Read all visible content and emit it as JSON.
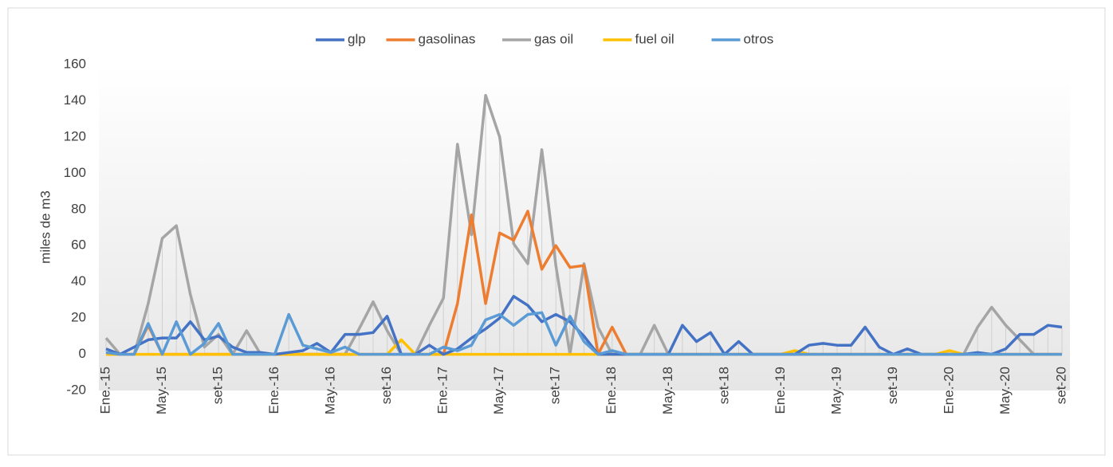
{
  "chart_data": {
    "type": "line",
    "y_label": "miles de m3",
    "categories": [
      "Ene.-15",
      null,
      null,
      null,
      "May.-15",
      null,
      null,
      null,
      "set-15",
      null,
      null,
      null,
      "Ene.-16",
      null,
      null,
      null,
      "May.-16",
      null,
      null,
      null,
      "set-16",
      null,
      null,
      null,
      "Ene.-17",
      null,
      null,
      null,
      "May.-17",
      null,
      null,
      null,
      "set-17",
      null,
      null,
      null,
      "Ene.-18",
      null,
      null,
      null,
      "May.-18",
      null,
      null,
      null,
      "set-18",
      null,
      null,
      null,
      "Ene.-19",
      null,
      null,
      null,
      "May.-19",
      null,
      null,
      null,
      "set-19",
      null,
      null,
      null,
      "Ene.-20",
      null,
      null,
      null,
      "May.-20",
      null,
      null,
      null,
      "set-20"
    ],
    "series": [
      {
        "name": "glp",
        "color": "#4472c4",
        "values": [
          3,
          0,
          4,
          8,
          9,
          9,
          18,
          8,
          10,
          4,
          1,
          1,
          0,
          1,
          2,
          6,
          1,
          11,
          11,
          12,
          21,
          0,
          0,
          5,
          0,
          3,
          9,
          14,
          20,
          32,
          27,
          18,
          22,
          18,
          10,
          0,
          0,
          0,
          0,
          0,
          0,
          16,
          7,
          12,
          0,
          7,
          0,
          0,
          0,
          0,
          5,
          6,
          5,
          5,
          15,
          4,
          0,
          3,
          0,
          0,
          0,
          0,
          1,
          0,
          3,
          11,
          11,
          16,
          15
        ]
      },
      {
        "name": "gasolinas",
        "color": "#ed7d31",
        "values": [
          0,
          0,
          0,
          16,
          0,
          0,
          0,
          0,
          0,
          0,
          0,
          0,
          0,
          0,
          0,
          0,
          0,
          0,
          0,
          0,
          0,
          0,
          0,
          0,
          0,
          28,
          77,
          28,
          67,
          63,
          79,
          47,
          60,
          48,
          49,
          0,
          15,
          0,
          0,
          0,
          0,
          0,
          0,
          0,
          0,
          0,
          0,
          0,
          0,
          0,
          0,
          0,
          0,
          0,
          0,
          0,
          0,
          0,
          0,
          0,
          0,
          0,
          0,
          0,
          0,
          0,
          0,
          0,
          0
        ]
      },
      {
        "name": "gas oil",
        "color": "#a5a5a5",
        "values": [
          9,
          0,
          0,
          28,
          64,
          71,
          33,
          4,
          11,
          0,
          13,
          0,
          0,
          0,
          0,
          0,
          0,
          0,
          14,
          29,
          13,
          0,
          0,
          16,
          31,
          116,
          66,
          143,
          120,
          61,
          50,
          113,
          49,
          0,
          50,
          15,
          0,
          0,
          0,
          16,
          0,
          0,
          0,
          0,
          0,
          0,
          0,
          0,
          0,
          0,
          0,
          0,
          0,
          0,
          0,
          0,
          0,
          0,
          0,
          0,
          0,
          0,
          15,
          26,
          16,
          8,
          0,
          0,
          0
        ]
      },
      {
        "name": "fuel oil",
        "color": "#ffc000",
        "values": [
          0,
          0,
          0,
          0,
          0,
          0,
          0,
          0,
          0,
          0,
          0,
          0,
          0,
          0,
          0,
          0,
          0,
          0,
          0,
          0,
          0,
          8,
          0,
          0,
          0,
          0,
          0,
          0,
          0,
          0,
          0,
          0,
          0,
          0,
          0,
          0,
          0,
          0,
          0,
          0,
          0,
          0,
          0,
          0,
          0,
          0,
          0,
          0,
          0,
          2,
          0,
          0,
          0,
          0,
          0,
          0,
          0,
          0,
          0,
          0,
          2,
          0,
          0,
          0,
          0,
          0,
          0,
          0,
          0
        ]
      },
      {
        "name": "otros",
        "color": "#5b9bd5",
        "values": [
          1,
          0,
          0,
          17,
          0,
          18,
          0,
          6,
          17,
          0,
          0,
          0,
          0,
          22,
          5,
          3,
          1,
          4,
          0,
          0,
          0,
          0,
          0,
          0,
          4,
          2,
          5,
          19,
          22,
          16,
          22,
          23,
          5,
          21,
          7,
          0,
          2,
          0,
          0,
          0,
          0,
          0,
          0,
          0,
          0,
          0,
          0,
          0,
          0,
          0,
          0,
          0,
          0,
          0,
          0,
          0,
          0,
          0,
          0,
          0,
          0,
          0,
          0,
          0,
          0,
          0,
          0,
          0,
          0
        ]
      }
    ],
    "ylim": [
      -20,
      160
    ],
    "yticks": [
      -20,
      0,
      20,
      40,
      60,
      80,
      100,
      120,
      140,
      160
    ],
    "legend": "top"
  }
}
